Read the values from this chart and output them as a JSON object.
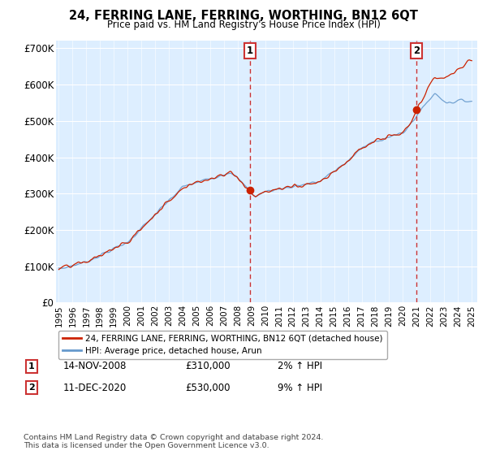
{
  "title": "24, FERRING LANE, FERRING, WORTHING, BN12 6QT",
  "subtitle": "Price paid vs. HM Land Registry's House Price Index (HPI)",
  "legend_label_red": "24, FERRING LANE, FERRING, WORTHING, BN12 6QT (detached house)",
  "legend_label_blue": "HPI: Average price, detached house, Arun",
  "annotation1_date": "14-NOV-2008",
  "annotation1_price": "£310,000",
  "annotation1_hpi": "2% ↑ HPI",
  "annotation2_date": "11-DEC-2020",
  "annotation2_price": "£530,000",
  "annotation2_hpi": "9% ↑ HPI",
  "footnote": "Contains HM Land Registry data © Crown copyright and database right 2024.\nThis data is licensed under the Open Government Licence v3.0.",
  "ylim": [
    0,
    720000
  ],
  "yticks": [
    0,
    100000,
    200000,
    300000,
    400000,
    500000,
    600000,
    700000
  ],
  "ytick_labels": [
    "£0",
    "£100K",
    "£200K",
    "£300K",
    "£400K",
    "£500K",
    "£600K",
    "£700K"
  ],
  "background_color": "#ffffff",
  "plot_bg_color": "#ddeeff",
  "highlight_bg_color": "#ddeeff",
  "grid_color": "#ffffff",
  "red_color": "#cc2200",
  "blue_color": "#6699cc",
  "sale1_year": 2008.88,
  "sale1_value": 310000,
  "sale2_year": 2020.96,
  "sale2_value": 530000,
  "vline1_year": 2008.88,
  "vline2_year": 2020.96,
  "xmin": 1994.8,
  "xmax": 2025.4,
  "xticks": [
    1995,
    1996,
    1997,
    1998,
    1999,
    2000,
    2001,
    2002,
    2003,
    2004,
    2005,
    2006,
    2007,
    2008,
    2009,
    2010,
    2011,
    2012,
    2013,
    2014,
    2015,
    2016,
    2017,
    2018,
    2019,
    2020,
    2021,
    2022,
    2023,
    2024,
    2025
  ]
}
